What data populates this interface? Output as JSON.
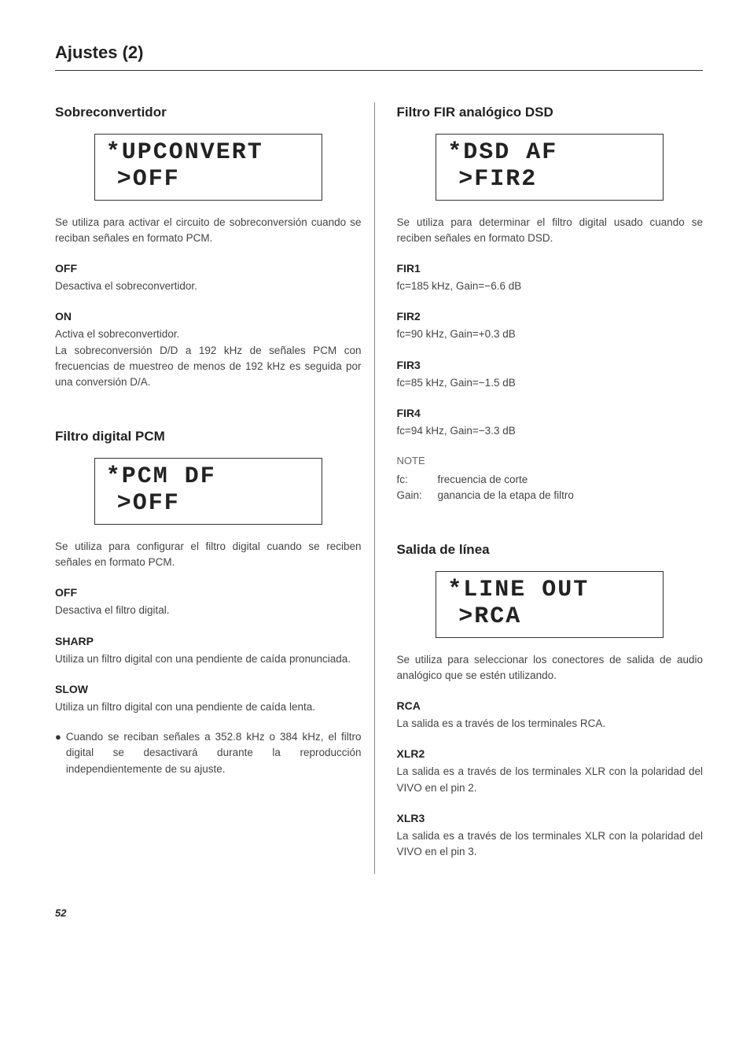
{
  "pageTitle": "Ajustes (2)",
  "pageNumber": "52",
  "left": {
    "section1": {
      "heading": "Sobreconvertidor",
      "lcd": {
        "line1": "*UPCONVERT",
        "line2": ">OFF"
      },
      "intro": "Se utiliza para activar el circuito de sobreconversión cuando se reciban señales en formato PCM.",
      "opts": [
        {
          "label": "OFF",
          "desc": "Desactiva el sobreconvertidor."
        },
        {
          "label": "ON",
          "desc": "Activa el sobreconvertidor.\nLa sobreconversión D/D a 192 kHz de señales PCM con frecuencias de muestreo de menos de 192 kHz es seguida por una conversión D/A."
        }
      ]
    },
    "section2": {
      "heading": "Filtro digital PCM",
      "lcd": {
        "line1": "*PCM DF",
        "line2": ">OFF"
      },
      "intro": "Se utiliza para configurar el filtro digital cuando se reciben señales en formato PCM.",
      "opts": [
        {
          "label": "OFF",
          "desc": "Desactiva el filtro digital."
        },
        {
          "label": "SHARP",
          "desc": "Utiliza un filtro digital con una pendiente de caída pronunciada."
        },
        {
          "label": "SLOW",
          "desc": "Utiliza un filtro digital con una pendiente de caída lenta."
        }
      ],
      "bullet": "Cuando se reciban señales a 352.8 kHz o 384 kHz, el filtro digital se desactivará durante la reproducción independientemente de su ajuste."
    }
  },
  "right": {
    "section1": {
      "heading": "Filtro FIR analógico DSD",
      "lcd": {
        "line1": "*DSD AF",
        "line2": ">FIR2"
      },
      "intro": "Se utiliza para determinar el filtro digital usado cuando se reciben señales en formato DSD.",
      "opts": [
        {
          "label": "FIR1",
          "desc": "fc=185 kHz, Gain=−6.6 dB"
        },
        {
          "label": "FIR2",
          "desc": "fc=90 kHz, Gain=+0.3 dB"
        },
        {
          "label": "FIR3",
          "desc": "fc=85 kHz, Gain=−1.5 dB"
        },
        {
          "label": "FIR4",
          "desc": "fc=94 kHz, Gain=−3.3 dB"
        }
      ],
      "noteLabel": "NOTE",
      "notes": [
        {
          "k": "fc:",
          "v": "frecuencia de corte"
        },
        {
          "k": "Gain:",
          "v": "ganancia de la etapa de filtro"
        }
      ]
    },
    "section2": {
      "heading": "Salida de línea",
      "lcd": {
        "line1": "*LINE OUT",
        "line2": ">RCA"
      },
      "intro": "Se utiliza para seleccionar los conectores de salida de audio analógico que se estén utilizando.",
      "opts": [
        {
          "label": "RCA",
          "desc": "La salida es a través de los terminales RCA."
        },
        {
          "label": "XLR2",
          "desc": "La salida es a través de los terminales XLR con la polaridad del VIVO en el pin 2."
        },
        {
          "label": "XLR3",
          "desc": "La salida es a través de los terminales XLR con la polaridad del VIVO en el pin 3."
        }
      ]
    }
  }
}
